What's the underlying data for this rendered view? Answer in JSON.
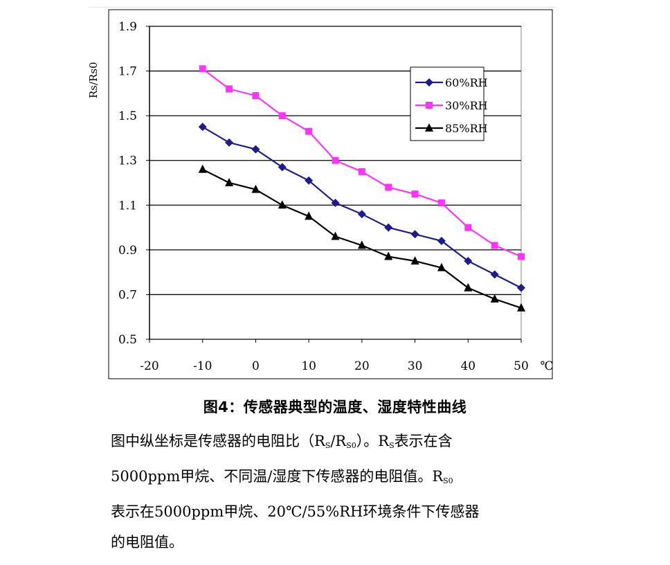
{
  "chart_data": {
    "type": "line",
    "title": "",
    "xlabel": "",
    "x_unit": "℃",
    "ylabel": "Rs/Rs0",
    "xlim": [
      -20,
      50
    ],
    "ylim": [
      0.5,
      1.9
    ],
    "x_ticks": [
      "-20",
      "-10",
      "0",
      "10",
      "20",
      "30",
      "40",
      "50"
    ],
    "y_ticks": [
      "0.5",
      "0.7",
      "0.9",
      "1.1",
      "1.3",
      "1.5",
      "1.7",
      "1.9"
    ],
    "grid": "horizontal",
    "legend_position": "top-right",
    "x": [
      -10,
      -5,
      0,
      5,
      10,
      15,
      20,
      25,
      30,
      35,
      40,
      45,
      50
    ],
    "series": [
      {
        "name": "60%RH",
        "color": "#1c1c8c",
        "marker": "diamond",
        "values": [
          1.45,
          1.38,
          1.35,
          1.27,
          1.21,
          1.11,
          1.06,
          1.0,
          0.97,
          0.94,
          0.85,
          0.79,
          0.73
        ]
      },
      {
        "name": "30%RH",
        "color": "#ff33ff",
        "marker": "square",
        "values": [
          1.71,
          1.62,
          1.59,
          1.5,
          1.43,
          1.3,
          1.25,
          1.18,
          1.15,
          1.11,
          1.0,
          0.92,
          0.87
        ]
      },
      {
        "name": "85%RH",
        "color": "#000000",
        "marker": "triangle",
        "values": [
          1.26,
          1.2,
          1.17,
          1.1,
          1.05,
          0.96,
          0.92,
          0.87,
          0.85,
          0.82,
          0.73,
          0.68,
          0.64
        ]
      }
    ]
  },
  "caption": "图4：传感器典型的温度、湿度特性曲线",
  "description": {
    "line1_pre": "图中纵坐标是传感器的电阻比（R",
    "line1_sub1": "S",
    "line1_mid": "/R",
    "line1_sub2": "S0",
    "line1_mid2": "）。R",
    "line1_sub3": "S",
    "line1_post": "表示在含",
    "line2_pre": "5000ppm甲烷、不同温/湿度下传感器的电阻值。R",
    "line2_sub": "S0",
    "line3": "表示在5000ppm甲烷、20℃/55%RH环境条件下传感器",
    "line4": "的电阻值。"
  }
}
